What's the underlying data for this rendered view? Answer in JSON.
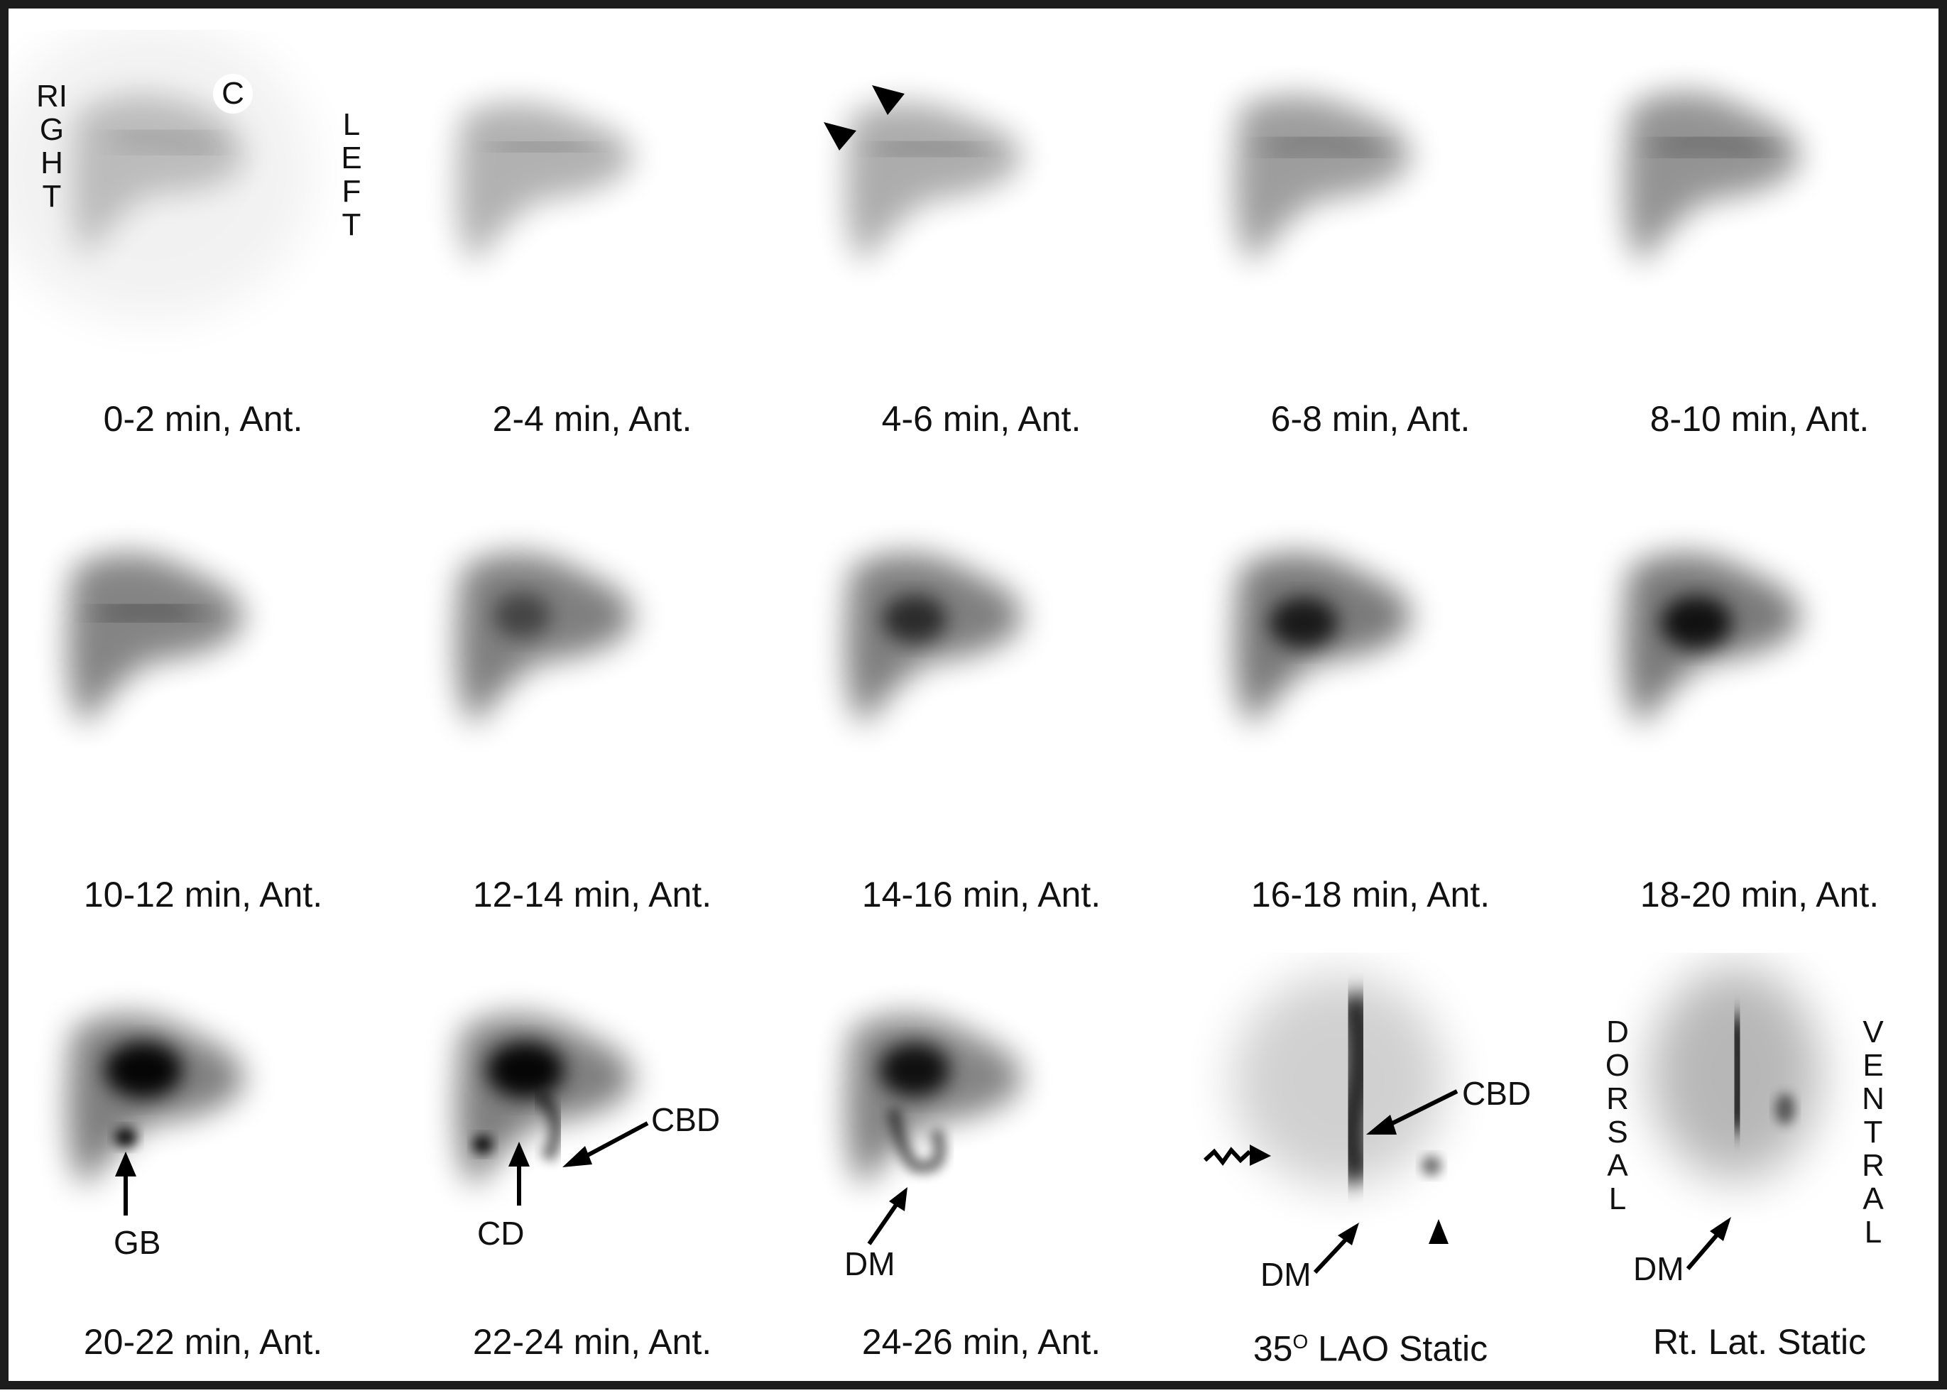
{
  "colors": {
    "frame": "#1c1c1c",
    "background": "#ffffff",
    "ink": "#111111",
    "tracer": "#000000"
  },
  "orientation": {
    "right": "RIGHT",
    "left": "LEFT",
    "dorsal": "DORSAL",
    "ventral": "VENTRAL"
  },
  "labels": {
    "c": "C",
    "gb": "GB",
    "cd": "CD",
    "cbd": "CBD",
    "dm": "DM"
  },
  "captions": [
    "0-2 min, Ant.",
    "2-4 min, Ant.",
    "4-6 min, Ant.",
    "6-8 min, Ant.",
    "8-10 min, Ant.",
    "10-12 min, Ant.",
    "12-14 min, Ant.",
    "14-16 min, Ant.",
    "16-18 min, Ant.",
    "18-20 min, Ant.",
    "20-22 min, Ant.",
    "22-24 min, Ant.",
    "24-26 min, Ant.",
    "35",
    "Rt. Lat. Static"
  ],
  "lao_caption": {
    "sup": "O",
    "rest": " LAO Static"
  },
  "icons": [
    "arrowhead-icon",
    "arrow-icon",
    "wavy-arrow-icon"
  ]
}
